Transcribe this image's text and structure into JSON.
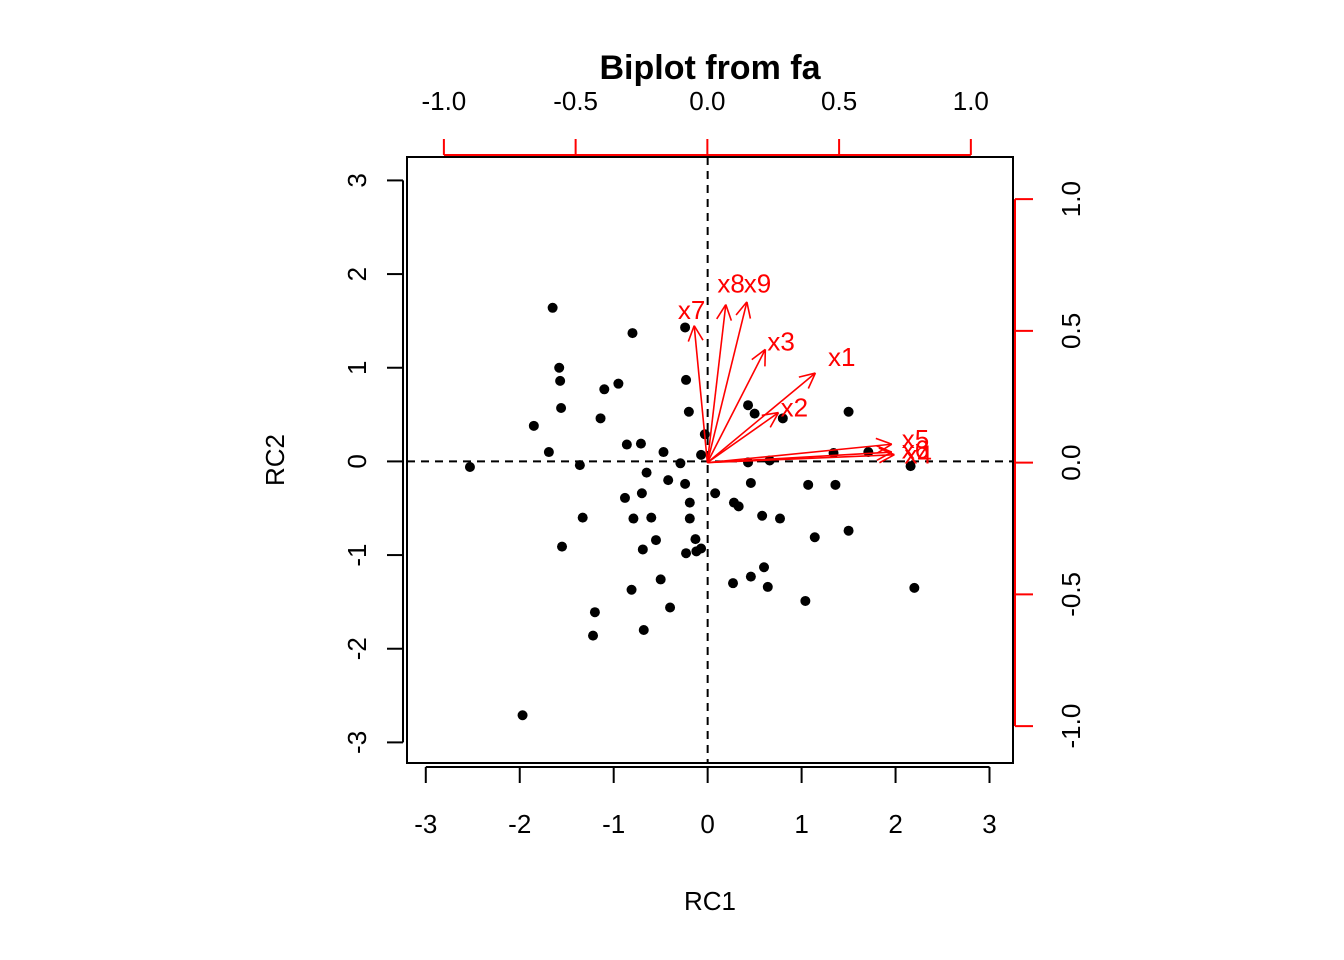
{
  "chart_data": {
    "type": "scatter",
    "title": "Biplot from fa",
    "xlabel": "RC1",
    "ylabel": "RC2",
    "xlim": [
      -3.2,
      3.25
    ],
    "ylim": [
      -3.22,
      3.25
    ],
    "x_ticks": [
      "-3",
      "-2",
      "-1",
      "0",
      "1",
      "2",
      "3"
    ],
    "y_ticks": [
      "-3",
      "-2",
      "-1",
      "0",
      "1",
      "2",
      "3"
    ],
    "loading_lim": [
      -1.14,
      1.16
    ],
    "top_ticks": [
      "-1.0",
      "-0.5",
      "0.0",
      "0.5",
      "1.0"
    ],
    "right_ticks": [
      "-1.0",
      "-0.5",
      "0.0",
      "0.5",
      "1.0"
    ],
    "scores": [
      {
        "x": -2.53,
        "y": -0.06
      },
      {
        "x": -1.97,
        "y": -2.71
      },
      {
        "x": -1.85,
        "y": 0.38
      },
      {
        "x": -1.69,
        "y": 0.1
      },
      {
        "x": -1.65,
        "y": 1.64
      },
      {
        "x": -1.58,
        "y": 1.0
      },
      {
        "x": -1.57,
        "y": 0.86
      },
      {
        "x": -1.56,
        "y": 0.57
      },
      {
        "x": -1.55,
        "y": -0.91
      },
      {
        "x": -1.36,
        "y": -0.04
      },
      {
        "x": -1.33,
        "y": -0.6
      },
      {
        "x": -1.22,
        "y": -1.86
      },
      {
        "x": -1.2,
        "y": -1.61
      },
      {
        "x": -1.14,
        "y": 0.46
      },
      {
        "x": -1.1,
        "y": 0.77
      },
      {
        "x": -0.95,
        "y": 0.83
      },
      {
        "x": -0.88,
        "y": -0.39
      },
      {
        "x": -0.86,
        "y": 0.18
      },
      {
        "x": -0.81,
        "y": -1.37
      },
      {
        "x": -0.8,
        "y": 1.37
      },
      {
        "x": -0.79,
        "y": -0.61
      },
      {
        "x": -0.71,
        "y": 0.19
      },
      {
        "x": -0.7,
        "y": -0.34
      },
      {
        "x": -0.69,
        "y": -0.94
      },
      {
        "x": -0.68,
        "y": -1.8
      },
      {
        "x": -0.65,
        "y": -0.12
      },
      {
        "x": -0.6,
        "y": -0.6
      },
      {
        "x": -0.55,
        "y": -0.84
      },
      {
        "x": -0.5,
        "y": -1.26
      },
      {
        "x": -0.47,
        "y": 0.1
      },
      {
        "x": -0.42,
        "y": -0.2
      },
      {
        "x": -0.4,
        "y": -1.56
      },
      {
        "x": -0.29,
        "y": -0.02
      },
      {
        "x": -0.24,
        "y": 1.43
      },
      {
        "x": -0.24,
        "y": -0.24
      },
      {
        "x": -0.23,
        "y": 0.87
      },
      {
        "x": -0.23,
        "y": -0.98
      },
      {
        "x": -0.2,
        "y": 0.53
      },
      {
        "x": -0.19,
        "y": -0.44
      },
      {
        "x": -0.19,
        "y": -0.61
      },
      {
        "x": -0.13,
        "y": -0.83
      },
      {
        "x": -0.12,
        "y": -0.96
      },
      {
        "x": -0.07,
        "y": 0.07
      },
      {
        "x": -0.07,
        "y": -0.93
      },
      {
        "x": -0.03,
        "y": 0.29
      },
      {
        "x": 0.08,
        "y": -0.34
      },
      {
        "x": 0.27,
        "y": -1.3
      },
      {
        "x": 0.28,
        "y": -0.44
      },
      {
        "x": 0.33,
        "y": -0.48
      },
      {
        "x": 0.43,
        "y": 0.6
      },
      {
        "x": 0.43,
        "y": -0.01
      },
      {
        "x": 0.46,
        "y": -1.23
      },
      {
        "x": 0.46,
        "y": -0.23
      },
      {
        "x": 0.5,
        "y": 0.51
      },
      {
        "x": 0.58,
        "y": -0.58
      },
      {
        "x": 0.6,
        "y": -1.13
      },
      {
        "x": 0.64,
        "y": -1.34
      },
      {
        "x": 0.66,
        "y": 0.01
      },
      {
        "x": 0.77,
        "y": -0.61
      },
      {
        "x": 0.8,
        "y": 0.46
      },
      {
        "x": 1.04,
        "y": -1.49
      },
      {
        "x": 1.07,
        "y": -0.25
      },
      {
        "x": 1.14,
        "y": -0.81
      },
      {
        "x": 1.34,
        "y": 0.09
      },
      {
        "x": 1.36,
        "y": -0.25
      },
      {
        "x": 1.5,
        "y": 0.53
      },
      {
        "x": 1.5,
        "y": -0.74
      },
      {
        "x": 1.71,
        "y": 0.1
      },
      {
        "x": 2.16,
        "y": -0.05
      },
      {
        "x": 2.2,
        "y": -1.35
      }
    ],
    "loadings": [
      {
        "name": "x1",
        "x": 0.41,
        "y": 0.34
      },
      {
        "name": "x2",
        "x": 0.27,
        "y": 0.19
      },
      {
        "name": "x3",
        "x": 0.22,
        "y": 0.43
      },
      {
        "name": "x4",
        "x": 0.71,
        "y": 0.03
      },
      {
        "name": "x5",
        "x": 0.7,
        "y": 0.07
      },
      {
        "name": "x6",
        "x": 0.7,
        "y": 0.04
      },
      {
        "name": "x7",
        "x": -0.05,
        "y": 0.52
      },
      {
        "name": "x8",
        "x": 0.07,
        "y": 0.6
      },
      {
        "name": "x9",
        "x": 0.15,
        "y": 0.61
      }
    ],
    "label_offsets": {
      "x1": [
        0.1,
        0.06
      ],
      "x2": [
        0.06,
        0.02
      ],
      "x3": [
        0.06,
        0.03
      ],
      "x4": [
        0.09,
        0.0
      ],
      "x5": [
        0.09,
        0.02
      ],
      "x6": [
        0.09,
        0.01
      ],
      "x7": [
        -0.01,
        0.06
      ],
      "x8": [
        0.02,
        0.08
      ],
      "x9": [
        0.04,
        0.07
      ]
    },
    "colors": {
      "points": "#000000",
      "loadings": "#ff0000",
      "frame": "#000000",
      "reference_lines": "#000000"
    },
    "grid": false,
    "legend": "none"
  }
}
